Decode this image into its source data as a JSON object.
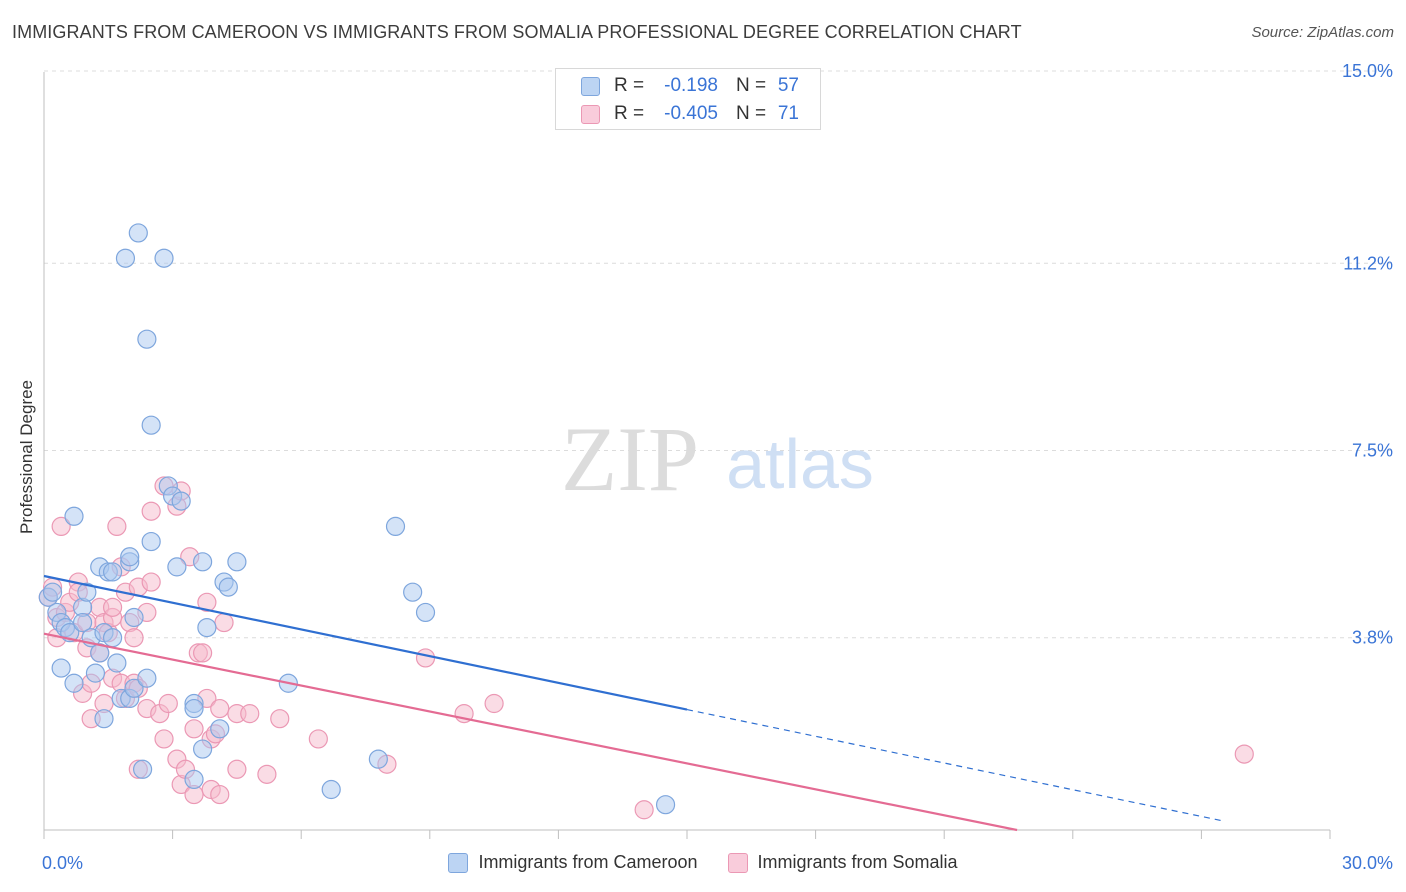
{
  "title": "IMMIGRANTS FROM CAMEROON VS IMMIGRANTS FROM SOMALIA PROFESSIONAL DEGREE CORRELATION CHART",
  "source": "Source: ZipAtlas.com",
  "watermark": {
    "zip": "ZIP",
    "atlas": "atlas"
  },
  "colors": {
    "blue_fill": "#a9c8f0",
    "blue_stroke": "#7ea6dd",
    "blue_line": "#2f6fd1",
    "pink_fill": "#f6b9cc",
    "pink_stroke": "#eb98b4",
    "pink_line": "#e46b93",
    "value_text": "#3a74d6",
    "grid": "#dcdcdc"
  },
  "stats_legend": {
    "rows": [
      {
        "r_label": "R =",
        "r_value": "-0.198",
        "n_label": "N =",
        "n_value": "57",
        "color": "blue"
      },
      {
        "r_label": "R =",
        "r_value": "-0.405",
        "n_label": "N =",
        "n_value": "71",
        "color": "pink"
      }
    ]
  },
  "legend": {
    "items": [
      {
        "label": "Immigrants from Cameroon",
        "color": "blue"
      },
      {
        "label": "Immigrants from Somalia",
        "color": "pink"
      }
    ]
  },
  "chart_data": {
    "type": "scatter",
    "title": "IMMIGRANTS FROM CAMEROON VS IMMIGRANTS FROM SOMALIA PROFESSIONAL DEGREE CORRELATION CHART",
    "xlabel": "",
    "ylabel": "Professional Degree",
    "xlim": [
      0,
      30
    ],
    "ylim": [
      0,
      15.5
    ],
    "x_ticks": [
      0,
      3,
      6,
      9,
      12,
      15,
      18,
      21,
      24,
      27,
      30
    ],
    "x_tick_labels": [
      {
        "value": 0,
        "label": "0.0%"
      },
      {
        "value": 30,
        "label": "30.0%"
      }
    ],
    "y_ticks": [
      {
        "value": 3.8,
        "label": "3.8%"
      },
      {
        "value": 7.5,
        "label": "7.5%"
      },
      {
        "value": 11.2,
        "label": "11.2%"
      },
      {
        "value": 15.0,
        "label": "15.0%"
      }
    ],
    "grid": true,
    "series": [
      {
        "name": "Immigrants from Cameroon",
        "color": "blue",
        "trend": {
          "x0": 0,
          "y0": 5.02,
          "x1": 15,
          "y1": 2.38,
          "dash_to_x": 27.5
        },
        "points": [
          [
            0.1,
            4.6
          ],
          [
            0.2,
            4.7
          ],
          [
            0.3,
            4.3
          ],
          [
            0.4,
            4.1
          ],
          [
            0.4,
            3.2
          ],
          [
            0.5,
            4.0
          ],
          [
            0.6,
            3.9
          ],
          [
            0.7,
            6.2
          ],
          [
            0.7,
            2.9
          ],
          [
            0.9,
            4.4
          ],
          [
            0.9,
            4.1
          ],
          [
            1.0,
            4.7
          ],
          [
            1.1,
            3.8
          ],
          [
            1.2,
            3.1
          ],
          [
            1.3,
            3.5
          ],
          [
            1.3,
            5.2
          ],
          [
            1.4,
            2.2
          ],
          [
            1.4,
            3.9
          ],
          [
            1.5,
            5.1
          ],
          [
            1.6,
            5.1
          ],
          [
            1.6,
            3.8
          ],
          [
            1.7,
            3.3
          ],
          [
            1.8,
            2.6
          ],
          [
            1.9,
            11.3
          ],
          [
            2.0,
            5.3
          ],
          [
            2.0,
            5.4
          ],
          [
            2.0,
            2.6
          ],
          [
            2.1,
            4.2
          ],
          [
            2.1,
            2.8
          ],
          [
            2.2,
            11.8
          ],
          [
            2.3,
            1.2
          ],
          [
            2.4,
            3.0
          ],
          [
            2.4,
            9.7
          ],
          [
            2.5,
            8.0
          ],
          [
            2.5,
            5.7
          ],
          [
            2.8,
            11.3
          ],
          [
            2.9,
            6.8
          ],
          [
            3.0,
            6.6
          ],
          [
            3.1,
            5.2
          ],
          [
            3.2,
            6.5
          ],
          [
            3.5,
            1.0
          ],
          [
            3.5,
            2.5
          ],
          [
            3.5,
            2.4
          ],
          [
            3.7,
            5.3
          ],
          [
            3.7,
            1.6
          ],
          [
            3.8,
            4.0
          ],
          [
            4.1,
            2.0
          ],
          [
            4.2,
            4.9
          ],
          [
            4.3,
            4.8
          ],
          [
            4.5,
            5.3
          ],
          [
            5.7,
            2.9
          ],
          [
            6.7,
            0.8
          ],
          [
            7.8,
            1.4
          ],
          [
            8.2,
            6.0
          ],
          [
            8.6,
            4.7
          ],
          [
            8.9,
            4.3
          ],
          [
            14.5,
            0.5
          ]
        ]
      },
      {
        "name": "Immigrants from Somalia",
        "color": "pink",
        "trend": {
          "x0": 0,
          "y0": 3.88,
          "x1": 22.7,
          "y1": 0.0
        },
        "points": [
          [
            0.1,
            4.6
          ],
          [
            0.2,
            4.8
          ],
          [
            0.3,
            4.2
          ],
          [
            0.3,
            3.8
          ],
          [
            0.4,
            6.0
          ],
          [
            0.5,
            4.3
          ],
          [
            0.6,
            4.5
          ],
          [
            0.7,
            3.9
          ],
          [
            0.8,
            4.9
          ],
          [
            0.8,
            4.7
          ],
          [
            0.9,
            2.7
          ],
          [
            1.0,
            4.1
          ],
          [
            1.0,
            3.6
          ],
          [
            1.1,
            2.9
          ],
          [
            1.1,
            2.2
          ],
          [
            1.3,
            4.4
          ],
          [
            1.3,
            3.5
          ],
          [
            1.4,
            4.1
          ],
          [
            1.4,
            2.5
          ],
          [
            1.5,
            3.9
          ],
          [
            1.6,
            3.0
          ],
          [
            1.6,
            4.2
          ],
          [
            1.6,
            4.4
          ],
          [
            1.7,
            6.0
          ],
          [
            1.8,
            2.9
          ],
          [
            1.8,
            5.2
          ],
          [
            1.9,
            4.7
          ],
          [
            1.9,
            2.6
          ],
          [
            2.0,
            4.1
          ],
          [
            2.1,
            3.8
          ],
          [
            2.1,
            2.9
          ],
          [
            2.2,
            4.8
          ],
          [
            2.2,
            2.8
          ],
          [
            2.2,
            1.2
          ],
          [
            2.4,
            2.4
          ],
          [
            2.4,
            4.3
          ],
          [
            2.5,
            4.9
          ],
          [
            2.5,
            6.3
          ],
          [
            2.7,
            2.3
          ],
          [
            2.8,
            6.8
          ],
          [
            2.8,
            1.8
          ],
          [
            2.9,
            2.5
          ],
          [
            3.1,
            6.4
          ],
          [
            3.1,
            1.4
          ],
          [
            3.2,
            0.9
          ],
          [
            3.2,
            6.7
          ],
          [
            3.3,
            1.2
          ],
          [
            3.4,
            5.4
          ],
          [
            3.5,
            2.0
          ],
          [
            3.5,
            0.7
          ],
          [
            3.6,
            3.5
          ],
          [
            3.7,
            3.5
          ],
          [
            3.8,
            4.5
          ],
          [
            3.8,
            2.6
          ],
          [
            3.9,
            0.8
          ],
          [
            3.9,
            1.8
          ],
          [
            4.0,
            1.9
          ],
          [
            4.1,
            2.4
          ],
          [
            4.1,
            0.7
          ],
          [
            4.2,
            4.1
          ],
          [
            4.5,
            2.3
          ],
          [
            4.5,
            1.2
          ],
          [
            4.8,
            2.3
          ],
          [
            5.2,
            1.1
          ],
          [
            5.5,
            2.2
          ],
          [
            6.4,
            1.8
          ],
          [
            8.0,
            1.3
          ],
          [
            8.9,
            3.4
          ],
          [
            9.8,
            2.3
          ],
          [
            10.5,
            2.5
          ],
          [
            14.0,
            0.4
          ],
          [
            28.0,
            1.5
          ]
        ]
      }
    ]
  }
}
